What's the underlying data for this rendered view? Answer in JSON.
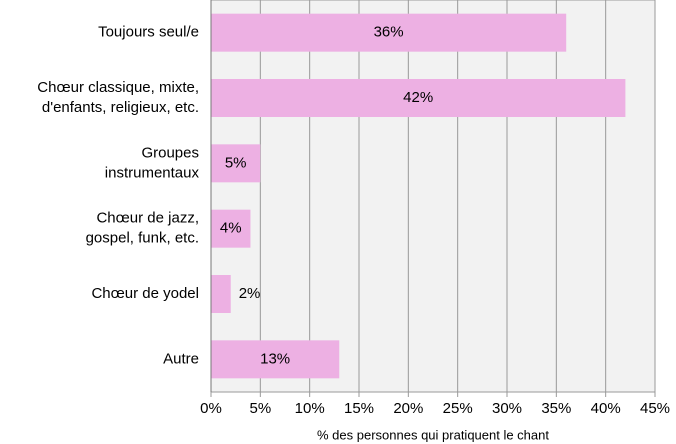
{
  "chart_data": {
    "type": "barh",
    "categories": [
      "Toujours seul/e",
      "Chœur classique, mixte,\nd'enfants, religieux, etc.",
      "Groupes\ninstrumentaux",
      "Chœur de jazz,\ngospel, funk, etc.",
      "Chœur de yodel",
      "Autre"
    ],
    "values": [
      36,
      42,
      5,
      4,
      2,
      13
    ],
    "value_labels": [
      "36%",
      "42%",
      "5%",
      "4%",
      "2%",
      "13%"
    ],
    "color": "#edb0e3",
    "xlim": [
      0,
      45
    ],
    "xticks": [
      {
        "value": 0,
        "label": "0%"
      },
      {
        "value": 5,
        "label": "5%"
      },
      {
        "value": 10,
        "label": "10%"
      },
      {
        "value": 15,
        "label": "15%"
      },
      {
        "value": 20,
        "label": "20%"
      },
      {
        "value": 25,
        "label": "25%"
      },
      {
        "value": 30,
        "label": "30%"
      },
      {
        "value": 35,
        "label": "35%"
      },
      {
        "value": 40,
        "label": "40%"
      },
      {
        "value": 45,
        "label": "45%"
      }
    ],
    "xlabel": "% des personnes qui pratiquent le chant",
    "grid": true
  }
}
